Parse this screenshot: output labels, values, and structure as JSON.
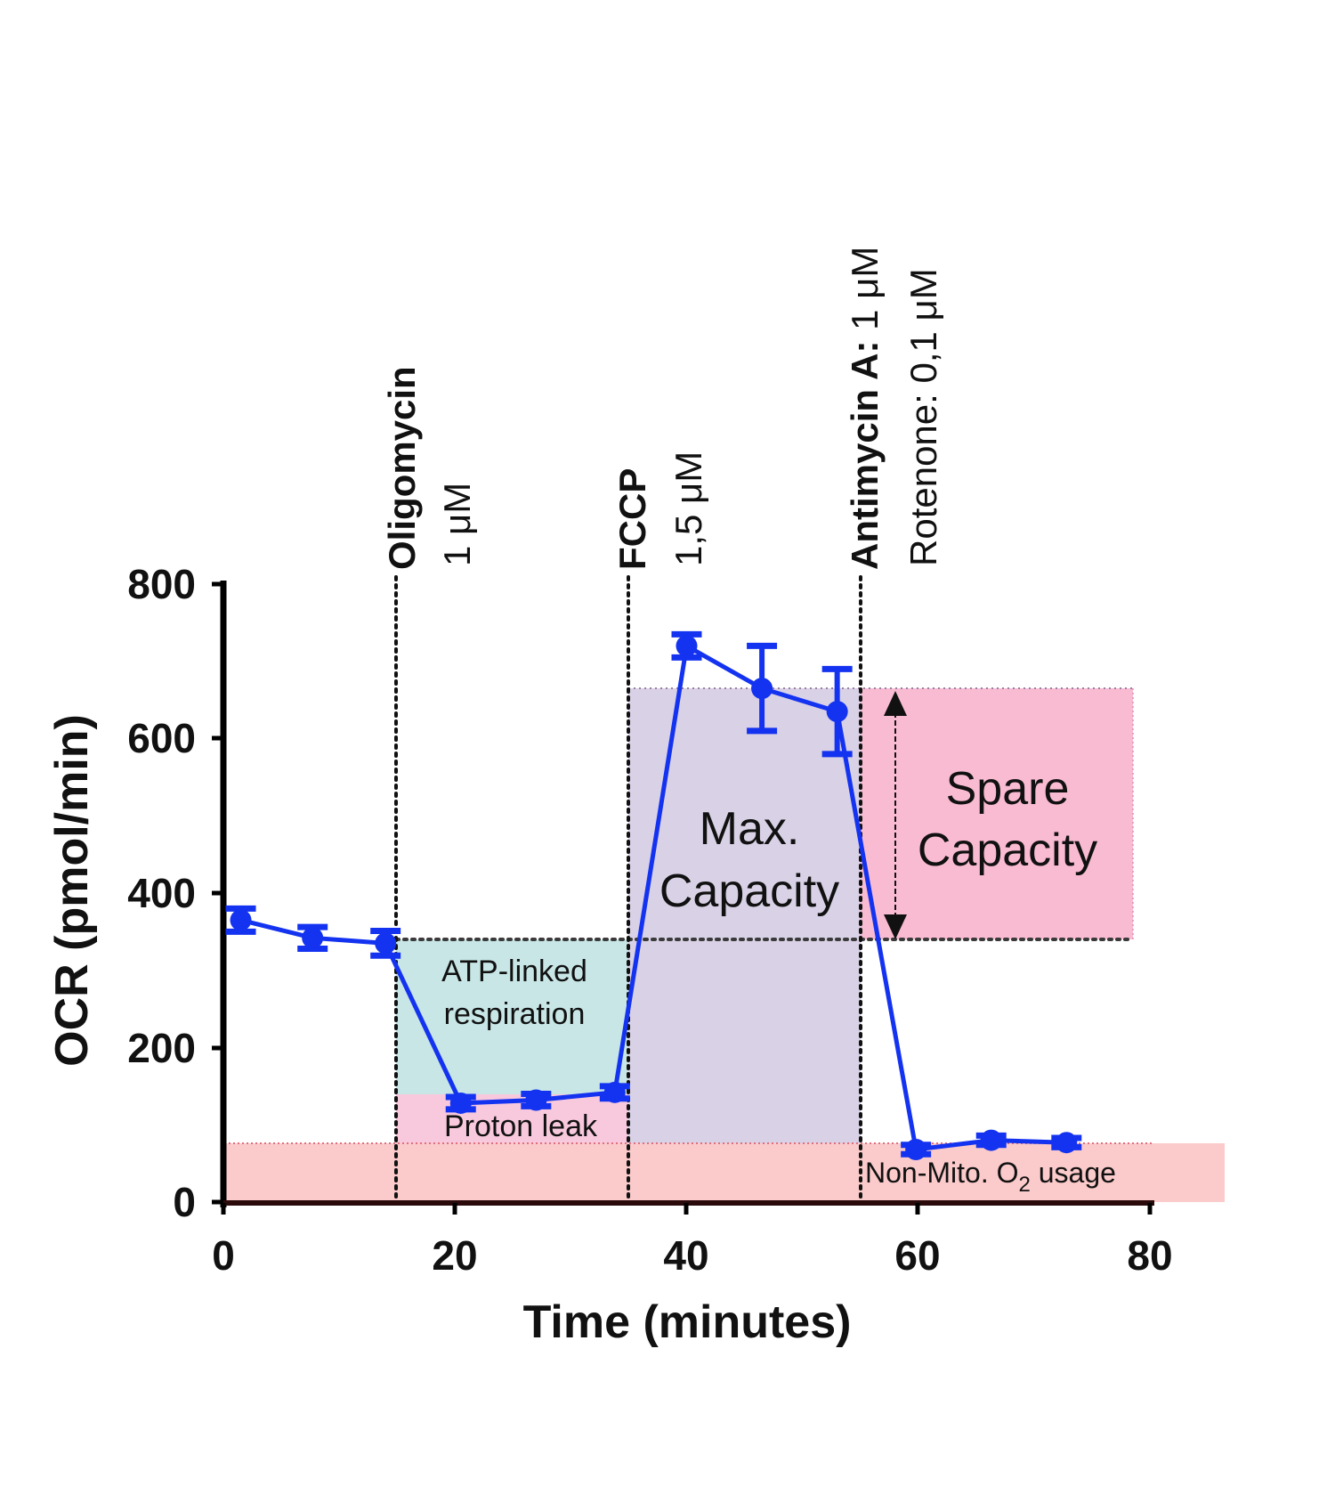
{
  "chart_data": {
    "type": "line",
    "title": "",
    "xlabel": "Time (minutes)",
    "ylabel": "OCR (pmol/min)",
    "xlim": [
      0,
      80
    ],
    "ylim": [
      0,
      800
    ],
    "x_ticks": [
      "0",
      "20",
      "40",
      "60",
      "80"
    ],
    "y_ticks": [
      "0",
      "200",
      "400",
      "600",
      "800"
    ],
    "grid": false,
    "legend": null,
    "series": [
      {
        "name": "OCR",
        "color": "#1433f0",
        "x": [
          1.5,
          7.7,
          14.0,
          20.5,
          27.0,
          33.8,
          40.0,
          46.5,
          53.0,
          59.8,
          66.3,
          72.8
        ],
        "values": [
          365,
          342,
          335,
          128,
          132,
          142,
          720,
          665,
          635,
          68,
          80,
          77
        ],
        "error": [
          15,
          14,
          16,
          8,
          8,
          8,
          15,
          55,
          55,
          6,
          6,
          6
        ]
      }
    ],
    "injections": [
      {
        "time": 15,
        "name": "Oligomycin",
        "dose": "1 μM"
      },
      {
        "time": 35,
        "name": "FCCP",
        "dose": "1,5 μM"
      },
      {
        "time": 55,
        "name": "Antimycin A:",
        "dose": "1 μM",
        "name2": "Rotenone: 0,1 μM"
      }
    ],
    "regions": [
      {
        "label": "ATP-linked respiration",
        "x": [
          15,
          35
        ],
        "y": [
          140,
          340
        ],
        "color": "#c6e6e6"
      },
      {
        "label": "Proton leak",
        "x": [
          15,
          35
        ],
        "y": [
          75,
          140
        ],
        "color": "#f8c6dc"
      },
      {
        "label": "Max. Capacity",
        "x": [
          35,
          55
        ],
        "y": [
          75,
          665
        ],
        "color": "#d9d0e6"
      },
      {
        "label": "Spare Capacity",
        "x": [
          55,
          78
        ],
        "y": [
          340,
          665
        ],
        "color": "#f9b9d0"
      },
      {
        "label": "Non-Mito. O2 usage",
        "x": [
          0,
          80
        ],
        "y": [
          0,
          75
        ],
        "color": "#fbcaca"
      }
    ],
    "annotations": [
      "Max.",
      "Capacity",
      "Spare",
      "Capacity",
      "ATP-linked",
      "respiration",
      "Proton leak",
      "Non-Mito. O",
      "2",
      " usage"
    ]
  },
  "labels": {
    "xlabel": "Time (minutes)",
    "ylabel": "OCR (pmol/min)",
    "x_ticks": [
      "0",
      "20",
      "40",
      "60",
      "80"
    ],
    "y_ticks": [
      "0",
      "200",
      "400",
      "600",
      "800"
    ],
    "oligomycin": "Oligomycin",
    "oligomycin_dose": "1 μM",
    "fccp": "FCCP",
    "fccp_dose": "1,5 μM",
    "antimycin": "Antimycin A:",
    "antimycin_dose": " 1 μM",
    "rotenone": "Rotenone: 0,1 μM",
    "atp_1": "ATP-linked",
    "atp_2": "respiration",
    "proton_leak": "Proton leak",
    "max_1": "Max.",
    "max_2": "Capacity",
    "spare_1": "Spare",
    "spare_2": "Capacity",
    "nonmito_a": "Non-Mito. O",
    "nonmito_sub": "2",
    "nonmito_b": " usage"
  }
}
